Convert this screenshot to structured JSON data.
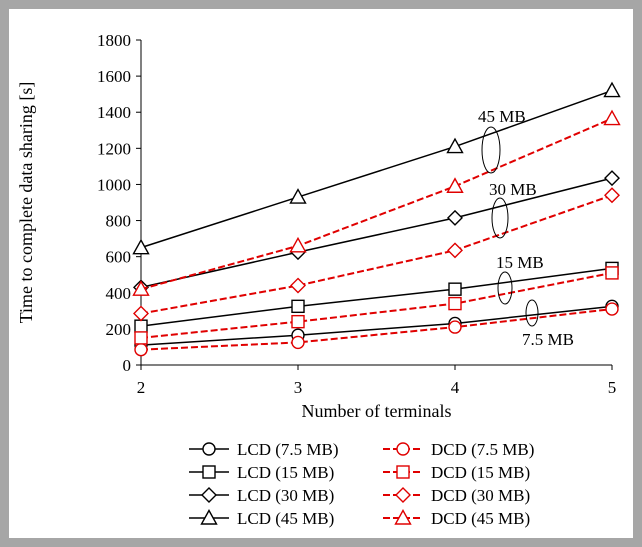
{
  "chart_data": {
    "type": "line",
    "xlabel": "Number of terminals",
    "ylabel": "Time to complete data sharing [s]",
    "x": [
      2,
      3,
      4,
      5
    ],
    "xlim": [
      2,
      5
    ],
    "ylim": [
      0,
      1800
    ],
    "xticks": [
      "2",
      "3",
      "4",
      "5"
    ],
    "yticks": [
      "0",
      "200",
      "400",
      "600",
      "800",
      "1000",
      "1200",
      "1400",
      "1600",
      "1800"
    ],
    "grid": false,
    "legend_position": "bottom",
    "annotations": [
      "45 MB",
      "30 MB",
      "15 MB",
      "7.5 MB"
    ],
    "series": [
      {
        "name": "LCD (7.5 MB)",
        "values": [
          110,
          165,
          230,
          325
        ],
        "marker": "circle",
        "style": "solid",
        "color": "#000000"
      },
      {
        "name": "DCD (7.5 MB)",
        "values": [
          85,
          125,
          210,
          310
        ],
        "marker": "circle",
        "style": "dashed",
        "color": "#e00000"
      },
      {
        "name": "LCD (15 MB)",
        "values": [
          215,
          325,
          420,
          535
        ],
        "marker": "square",
        "style": "solid",
        "color": "#000000"
      },
      {
        "name": "DCD (15 MB)",
        "values": [
          150,
          240,
          340,
          510
        ],
        "marker": "square",
        "style": "dashed",
        "color": "#e00000"
      },
      {
        "name": "LCD (30 MB)",
        "values": [
          430,
          625,
          815,
          1035
        ],
        "marker": "diamond",
        "style": "solid",
        "color": "#000000"
      },
      {
        "name": "DCD (30 MB)",
        "values": [
          285,
          440,
          635,
          940
        ],
        "marker": "diamond",
        "style": "dashed",
        "color": "#e00000"
      },
      {
        "name": "LCD (45 MB)",
        "values": [
          650,
          930,
          1210,
          1520
        ],
        "marker": "triangle",
        "style": "solid",
        "color": "#000000"
      },
      {
        "name": "DCD (45 MB)",
        "values": [
          420,
          660,
          990,
          1365
        ],
        "marker": "triangle",
        "style": "dashed",
        "color": "#e00000"
      }
    ]
  }
}
